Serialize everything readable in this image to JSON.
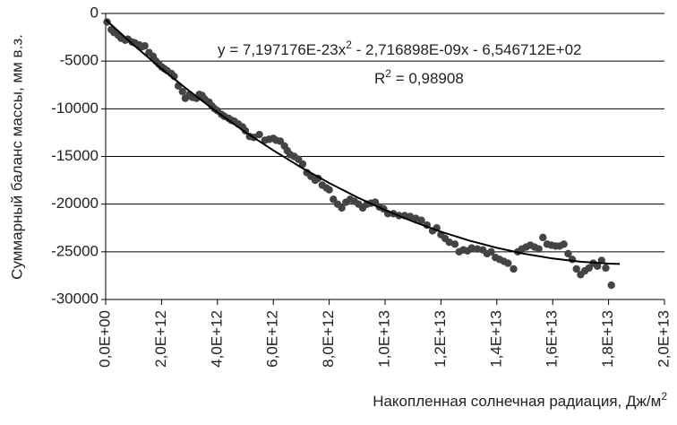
{
  "chart_data": {
    "type": "scatter",
    "y_label": "Суммарный баланс массы, мм в.з.",
    "x_label": [
      "Накопленная солнечная радиация, Дж/м",
      "2"
    ],
    "equation": [
      "y = 7,197176E-23x",
      "2",
      " - 2,716898E-09x - 6,546712E+02"
    ],
    "r_squared": [
      "R",
      "2",
      " = 0,98908"
    ],
    "xlim": [
      0,
      20000000000000.0
    ],
    "ylim": [
      -30000,
      0
    ],
    "xticks": [
      {
        "value": 0,
        "label": "0,0E+00"
      },
      {
        "value": 2000000000000.0,
        "label": "2,0E+12"
      },
      {
        "value": 4000000000000.0,
        "label": "4,0E+12"
      },
      {
        "value": 6000000000000.0,
        "label": "6,0E+12"
      },
      {
        "value": 8000000000000.0,
        "label": "8,0E+12"
      },
      {
        "value": 10000000000000.0,
        "label": "1,0E+13"
      },
      {
        "value": 12000000000000.0,
        "label": "1,2E+13"
      },
      {
        "value": 14000000000000.0,
        "label": "1,4E+13"
      },
      {
        "value": 16000000000000.0,
        "label": "1,6E+13"
      },
      {
        "value": 18000000000000.0,
        "label": "1,8E+13"
      },
      {
        "value": 20000000000000.0,
        "label": "2,0E+13"
      }
    ],
    "yticks": [
      0,
      -5000,
      -10000,
      -15000,
      -20000,
      -25000,
      -30000
    ],
    "grid": true,
    "series": [
      {
        "color": "#444444",
        "x": [
          50000000000.0,
          200000000000.0,
          300000000000.0,
          450000000000.0,
          550000000000.0,
          700000000000.0,
          800000000000.0,
          950000000000.0,
          1050000000000.0,
          1200000000000.0,
          1300000000000.0,
          1400000000000.0,
          1550000000000.0,
          1700000000000.0,
          1800000000000.0,
          1900000000000.0,
          2000000000000.0,
          2100000000000.0,
          2200000000000.0,
          2350000000000.0,
          2450000000000.0,
          2600000000000.0,
          2750000000000.0,
          2850000000000.0,
          3000000000000.0,
          3100000000000.0,
          3250000000000.0,
          3350000000000.0,
          3450000000000.0,
          3550000000000.0,
          3700000000000.0,
          3800000000000.0,
          3900000000000.0,
          4000000000000.0,
          4150000000000.0,
          4250000000000.0,
          4400000000000.0,
          4500000000000.0,
          4600000000000.0,
          4750000000000.0,
          4900000000000.0,
          5000000000000.0,
          5150000000000.0,
          5300000000000.0,
          5500000000000.0,
          5700000000000.0,
          5850000000000.0,
          6000000000000.0,
          6100000000000.0,
          6250000000000.0,
          6400000000000.0,
          6500000000000.0,
          6600000000000.0,
          6750000000000.0,
          6900000000000.0,
          7050000000000.0,
          7200000000000.0,
          7350000000000.0,
          7500000000000.0,
          7600000000000.0,
          7750000000000.0,
          7900000000000.0,
          8000000000000.0,
          8150000000000.0,
          8300000000000.0,
          8450000000000.0,
          8600000000000.0,
          8750000000000.0,
          8900000000000.0,
          9050000000000.0,
          9200000000000.0,
          9350000000000.0,
          9500000000000.0,
          9650000000000.0,
          9800000000000.0,
          9950000000000.0,
          10100000000000.0,
          10300000000000.0,
          10500000000000.0,
          10700000000000.0,
          10900000000000.0,
          11100000000000.0,
          11300000000000.0,
          11500000000000.0,
          11700000000000.0,
          11850000000000.0,
          12000000000000.0,
          12150000000000.0,
          12300000000000.0,
          12500000000000.0,
          12650000000000.0,
          12800000000000.0,
          12950000000000.0,
          13100000000000.0,
          13300000000000.0,
          13500000000000.0,
          13650000000000.0,
          13800000000000.0,
          13950000000000.0,
          14100000000000.0,
          14250000000000.0,
          14400000000000.0,
          14600000000000.0,
          14750000000000.0,
          14900000000000.0,
          15050000000000.0,
          15200000000000.0,
          15350000000000.0,
          15500000000000.0,
          15650000000000.0,
          15800000000000.0,
          15950000000000.0,
          16100000000000.0,
          16250000000000.0,
          16400000000000.0,
          16550000000000.0,
          16700000000000.0,
          16850000000000.0,
          17000000000000.0,
          17150000000000.0,
          17300000000000.0,
          17450000000000.0,
          17600000000000.0,
          17750000000000.0,
          17900000000000.0,
          18100000000000.0
        ],
        "values": [
          -900,
          -1700,
          -2000,
          -2300,
          -2600,
          -2800,
          -2700,
          -3000,
          -3100,
          -3300,
          -3500,
          -3400,
          -4100,
          -4500,
          -5000,
          -5300,
          -5600,
          -5800,
          -6000,
          -6300,
          -6600,
          -7600,
          -8200,
          -8900,
          -8500,
          -8800,
          -8900,
          -8500,
          -8600,
          -9000,
          -9300,
          -9700,
          -10000,
          -10200,
          -10600,
          -10800,
          -11000,
          -11200,
          -11300,
          -11600,
          -11900,
          -12300,
          -12900,
          -13000,
          -12700,
          -13300,
          -13200,
          -13100,
          -13300,
          -13400,
          -13900,
          -14400,
          -14800,
          -15000,
          -15300,
          -15800,
          -16700,
          -17100,
          -17500,
          -17300,
          -18000,
          -18300,
          -18500,
          -19500,
          -20000,
          -20400,
          -19800,
          -19500,
          -19700,
          -20000,
          -20400,
          -20000,
          -19900,
          -19800,
          -20300,
          -20500,
          -21000,
          -21000,
          -21200,
          -21200,
          -21300,
          -21500,
          -21700,
          -22200,
          -22800,
          -22500,
          -23200,
          -23600,
          -24000,
          -24200,
          -25000,
          -24800,
          -24900,
          -24600,
          -24700,
          -24800,
          -25200,
          -25000,
          -25600,
          -25800,
          -26000,
          -26200,
          -26800,
          -25000,
          -24700,
          -24500,
          -24300,
          -24500,
          -24700,
          -23500,
          -24200,
          -24300,
          -24400,
          -24400,
          -24200,
          -25200,
          -25800,
          -26800,
          -27400,
          -27000,
          -26700,
          -26200,
          -26500,
          -25900,
          -26700,
          -28500
        ]
      }
    ],
    "trendline": {
      "color": "#000000",
      "x": [
        0,
        1000000000000.0,
        2000000000000.0,
        3000000000000.0,
        4000000000000.0,
        5000000000000.0,
        6000000000000.0,
        7000000000000.0,
        8000000000000.0,
        9000000000000.0,
        10000000000000.0,
        11000000000000.0,
        12000000000000.0,
        13000000000000.0,
        14000000000000.0,
        15000000000000.0,
        16000000000000.0,
        17000000000000.0,
        18000000000000.0,
        18400000000000.0
      ],
      "values": [
        -655,
        -3300,
        -5801,
        -8158,
        -10371,
        -12440,
        -14365,
        -16146,
        -17784,
        -19277,
        -20627,
        -21832,
        -22894,
        -23812,
        -24586,
        -25215,
        -25700,
        -26042,
        -26240,
        -26279
      ]
    }
  }
}
